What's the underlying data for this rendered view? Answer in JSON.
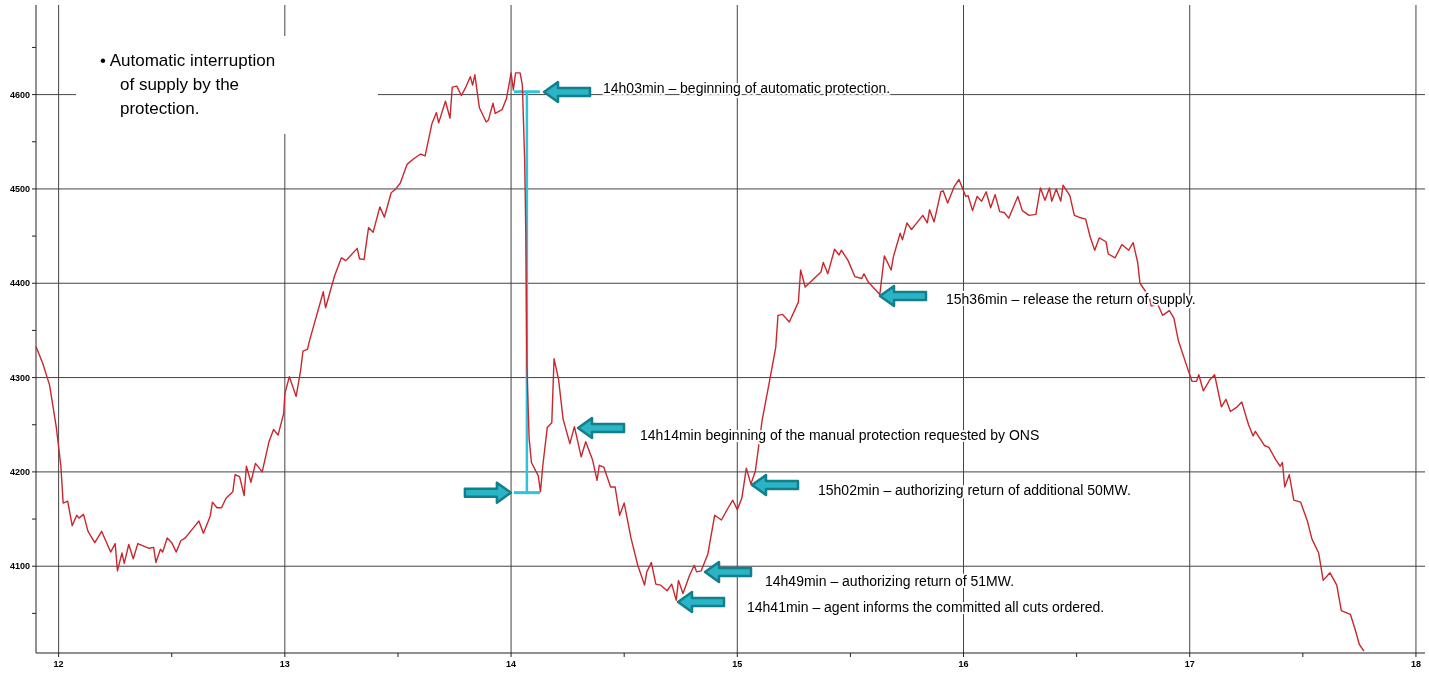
{
  "chart_data": {
    "type": "line",
    "xlim": [
      11.9,
      18.04
    ],
    "ylim": [
      4008,
      4695
    ],
    "xticks": [
      12,
      {
        "value": 12.5,
        "label": null
      },
      13,
      {
        "value": 13.5,
        "label": null
      },
      14,
      {
        "value": 14.5,
        "label": null
      },
      15,
      {
        "value": 15.5,
        "label": null
      },
      16,
      {
        "value": 16.5,
        "label": null
      },
      17,
      {
        "value": 17.5,
        "label": null
      },
      18
    ],
    "yticks": [
      {
        "value": 4050,
        "label": null
      },
      4100,
      {
        "value": 4150,
        "label": null
      },
      4200,
      {
        "value": 4250,
        "label": null
      },
      4300,
      {
        "value": 4350,
        "label": null
      },
      4400,
      {
        "value": 4450,
        "label": null
      },
      4500,
      {
        "value": 4550,
        "label": null
      },
      4600,
      {
        "value": 4650,
        "label": null
      }
    ],
    "grid": true,
    "series": [
      {
        "color": "#c8282d",
        "x": [
          11.9,
          11.93,
          11.96,
          11.99,
          12.01,
          12.02,
          12.04,
          12.06,
          12.08,
          12.09,
          12.11,
          12.13,
          12.16,
          12.19,
          12.23,
          12.25,
          12.26,
          12.28,
          12.29,
          12.31,
          12.33,
          12.35,
          12.4,
          12.42,
          12.43,
          12.45,
          12.46,
          12.48,
          12.5,
          12.52,
          12.54,
          12.56,
          12.6,
          12.62,
          12.64,
          12.66,
          12.67,
          12.68,
          12.7,
          12.72,
          12.74,
          12.77,
          12.78,
          12.8,
          12.82,
          12.83,
          12.85,
          12.87,
          12.9,
          12.93,
          12.95,
          12.97,
          12.995,
          13.0,
          13.02,
          13.05,
          13.07,
          13.08,
          13.1,
          13.11,
          13.17,
          13.18,
          13.22,
          13.25,
          13.27,
          13.32,
          13.33,
          13.35,
          13.37,
          13.39,
          13.42,
          13.44,
          13.47,
          13.49,
          13.51,
          13.54,
          13.57,
          13.6,
          13.62,
          13.65,
          13.67,
          13.68,
          13.71,
          13.73,
          13.74,
          13.76,
          13.78,
          13.8,
          13.82,
          13.83,
          13.84,
          13.86,
          13.89,
          13.9,
          13.92,
          13.93,
          13.96,
          13.98,
          14.0,
          14.01,
          14.02,
          14.04,
          14.05,
          14.06,
          14.065,
          14.07,
          14.08,
          14.09,
          14.12,
          14.13,
          14.14,
          14.16,
          14.18,
          14.19,
          14.21,
          14.23,
          14.26,
          14.28,
          14.31,
          14.33,
          14.36,
          14.38,
          14.39,
          14.41,
          14.44,
          14.46,
          14.48,
          14.5,
          14.53,
          14.56,
          14.59,
          14.6,
          14.62,
          14.64,
          14.66,
          14.69,
          14.71,
          14.73,
          14.74,
          14.76,
          14.79,
          14.81,
          14.82,
          14.84,
          14.87,
          14.9,
          14.93,
          14.96,
          14.98,
          15.0,
          15.02,
          15.04,
          15.06,
          15.08,
          15.11,
          15.14,
          15.17,
          15.18,
          15.2,
          15.23,
          15.27,
          15.28,
          15.3,
          15.37,
          15.38,
          15.4,
          15.43,
          15.45,
          15.46,
          15.49,
          15.52,
          15.55,
          15.56,
          15.58,
          15.63,
          15.65,
          15.68,
          15.69,
          15.72,
          15.73,
          15.75,
          15.77,
          15.79,
          15.82,
          15.84,
          15.85,
          15.87,
          15.9,
          15.91,
          15.93,
          15.96,
          15.98,
          16.01,
          16.02,
          16.04,
          16.06,
          16.08,
          16.1,
          16.12,
          16.14,
          16.16,
          16.18,
          16.2,
          16.24,
          16.26,
          16.29,
          16.32,
          16.34,
          16.36,
          16.38,
          16.39,
          16.41,
          16.43,
          16.44,
          16.47,
          16.49,
          16.51,
          16.54,
          16.56,
          16.58,
          16.6,
          16.63,
          16.64,
          16.67,
          16.7,
          16.73,
          16.75,
          16.77,
          16.78,
          16.82,
          16.83,
          16.86,
          16.88,
          16.91,
          16.93,
          16.95,
          16.99,
          17.01,
          17.03,
          17.04,
          17.06,
          17.09,
          17.11,
          17.14,
          17.16,
          17.18,
          17.21,
          17.23,
          17.26,
          17.28,
          17.29,
          17.33,
          17.35,
          17.38,
          17.4,
          17.41,
          17.42,
          17.44,
          17.46,
          17.49,
          17.52,
          17.54,
          17.57,
          17.59,
          17.62,
          17.65,
          17.67,
          17.71,
          17.73,
          17.75,
          17.77
        ],
        "values": [
          4333,
          4315,
          4292,
          4247,
          4206,
          4167,
          4169,
          4143,
          4154,
          4151,
          4155,
          4137,
          4125,
          4137,
          4115,
          4124,
          4095,
          4114,
          4103,
          4123,
          4108,
          4124,
          4119,
          4120,
          4104,
          4118,
          4115,
          4130,
          4125,
          4115,
          4127,
          4130,
          4142,
          4148,
          4135,
          4147,
          4153,
          4168,
          4162,
          4162,
          4172,
          4179,
          4197,
          4195,
          4175,
          4206,
          4189,
          4209,
          4200,
          4232,
          4245,
          4239,
          4262,
          4283,
          4301,
          4280,
          4308,
          4328,
          4330,
          4340,
          4391,
          4374,
          4408,
          4427,
          4424,
          4437,
          4426,
          4425,
          4459,
          4454,
          4481,
          4470,
          4496,
          4500,
          4506,
          4526,
          4532,
          4537,
          4535,
          4569,
          4581,
          4570,
          4593,
          4575,
          4608,
          4609,
          4599,
          4608,
          4619,
          4610,
          4621,
          4586,
          4571,
          4573,
          4591,
          4580,
          4584,
          4596,
          4623,
          4605,
          4623,
          4623,
          4610,
          4532,
          4457,
          4312,
          4235,
          4210,
          4196,
          4179,
          4206,
          4247,
          4252,
          4320,
          4298,
          4256,
          4230,
          4248,
          4216,
          4232,
          4213,
          4191,
          4207,
          4205,
          4184,
          4184,
          4154,
          4167,
          4130,
          4101,
          4080,
          4094,
          4104,
          4081,
          4080,
          4074,
          4081,
          4064,
          4085,
          4071,
          4091,
          4101,
          4094,
          4095,
          4113,
          4154,
          4149,
          4162,
          4170,
          4160,
          4172,
          4204,
          4187,
          4201,
          4255,
          4293,
          4332,
          4366,
          4367,
          4359,
          4380,
          4414,
          4396,
          4412,
          4422,
          4410,
          4436,
          4430,
          4435,
          4424,
          4407,
          4405,
          4410,
          4401,
          4388,
          4429,
          4414,
          4428,
          4453,
          4446,
          4464,
          4457,
          4463,
          4472,
          4464,
          4478,
          4465,
          4497,
          4498,
          4485,
          4503,
          4510,
          4492,
          4493,
          4477,
          4492,
          4487,
          4497,
          4480,
          4494,
          4476,
          4475,
          4469,
          4492,
          4477,
          4472,
          4473,
          4501,
          4488,
          4501,
          4487,
          4500,
          4487,
          4504,
          4493,
          4472,
          4470,
          4468,
          4449,
          4435,
          4448,
          4444,
          4431,
          4427,
          4441,
          4435,
          4443,
          4422,
          4400,
          4386,
          4376,
          4377,
          4366,
          4371,
          4363,
          4339,
          4310,
          4296,
          4296,
          4303,
          4286,
          4298,
          4303,
          4269,
          4277,
          4264,
          4269,
          4274,
          4250,
          4238,
          4243,
          4228,
          4226,
          4213,
          4206,
          4210,
          4184,
          4197,
          4170,
          4168,
          4148,
          4129,
          4114,
          4085,
          4093,
          4080,
          4053,
          4049,
          4034,
          4017,
          4010
        ]
      },
      {
        "type": "line",
        "color": "#2ec4dc",
        "x": [
          14.07,
          14.07
        ],
        "values": [
          4603,
          4178
        ]
      }
    ],
    "annotations": [
      "• Automatic interruption of supply by the protection.",
      "14h03min – beginning of automatic protection.",
      "14h14min beginning of the manual protection requested by ONS",
      "15h36min – release the return of supply.",
      "15h02min – authorizing return of additional 50MW.",
      "14h49min – authorizing return of 51MW.",
      "14h41min – agent informs the committed all cuts ordered."
    ]
  }
}
